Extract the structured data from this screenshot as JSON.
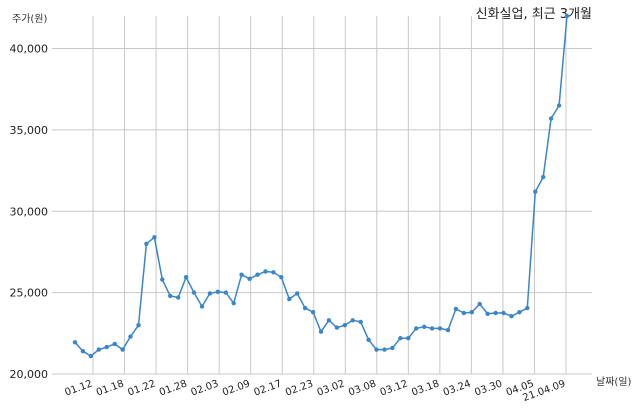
{
  "chart_data": {
    "type": "line",
    "title": "신화실업, 최근 3개월",
    "ylabel": "주가(원)",
    "xlabel": "날짜(일)",
    "ylim": [
      20000,
      42000
    ],
    "yticks": [
      20000,
      25000,
      30000,
      35000,
      40000
    ],
    "ytick_labels": [
      "20,000",
      "25,000",
      "30,000",
      "35,000",
      "40,000"
    ],
    "xtick_labels": [
      "01.12",
      "01.18",
      "01.22",
      "01.28",
      "02.03",
      "02.09",
      "02.17",
      "02.23",
      "03.02",
      "03.08",
      "03.12",
      "03.18",
      "03.24",
      "03.30",
      "04.05",
      "21.04.09"
    ],
    "grid": true,
    "color": "#3a86c8",
    "series": [
      {
        "values": [
          21950,
          21400,
          21100,
          21500,
          21650,
          21850,
          21500,
          22300,
          23000,
          28000,
          28400,
          25800,
          24800,
          24700,
          25950,
          25000,
          24150,
          24950,
          25050,
          25000,
          24350,
          26100,
          25850,
          26100,
          26300,
          26250,
          25950,
          24600,
          24950,
          24050,
          23800,
          22600,
          23300,
          22850,
          23000,
          23300,
          23200,
          22100,
          21500,
          21500,
          21600,
          22200,
          22200,
          22800,
          22900,
          22800,
          22800,
          22700,
          24000,
          23750,
          23800,
          24300,
          23700,
          23750,
          23750,
          23550,
          23800,
          24050,
          31200,
          32100,
          35700,
          36500,
          42000
        ]
      }
    ]
  }
}
